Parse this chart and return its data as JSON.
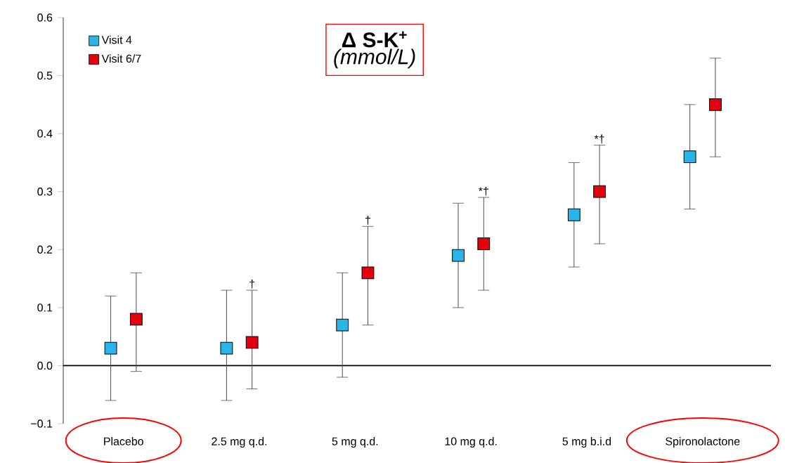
{
  "chart_data": {
    "type": "scatter",
    "title": "Δ S-K$^{+}$",
    "subtitle": "(mmol/L)",
    "categories": [
      "Placebo",
      "2.5 mg q.d.",
      "5 mg q.d.",
      "10 mg q.d.",
      "5 mg b.i.d",
      "Spironolactone"
    ],
    "series": [
      {
        "name": "Visit 4",
        "color": "#29b5e8",
        "values": [
          0.03,
          0.03,
          0.07,
          0.19,
          0.26,
          0.36
        ],
        "errors": [
          [
            -0.06,
            0.12
          ],
          [
            -0.06,
            0.13
          ],
          [
            -0.02,
            0.16
          ],
          [
            0.1,
            0.28
          ],
          [
            0.17,
            0.35
          ],
          [
            0.27,
            0.45
          ]
        ]
      },
      {
        "name": "Visit 6/7",
        "color": "#e3000f",
        "values": [
          0.08,
          0.04,
          0.16,
          0.21,
          0.3,
          0.45
        ],
        "errors": [
          [
            -0.01,
            0.16
          ],
          [
            -0.04,
            0.13
          ],
          [
            0.07,
            0.24
          ],
          [
            0.13,
            0.29
          ],
          [
            0.21,
            0.38
          ],
          [
            0.36,
            0.53
          ]
        ]
      }
    ],
    "ylim": [
      -0.1,
      0.6
    ],
    "yticks": [
      {
        "value": -0.1,
        "label": "−0.1"
      },
      {
        "value": 0,
        "label": "0.0"
      },
      {
        "value": 0.1,
        "label": "0.1"
      },
      {
        "value": 0.2,
        "label": "0.2"
      },
      {
        "value": 0.3,
        "label": "0.3"
      },
      {
        "value": 0.4,
        "label": "0.4"
      },
      {
        "value": 0.5,
        "label": "0.5"
      },
      {
        "value": 0.6,
        "label": "0.6"
      }
    ],
    "ref_lines": [
      {
        "axis": "y",
        "value": 0
      }
    ],
    "annotations": [
      "†",
      "†",
      "*†",
      "*†"
    ],
    "marker": "square",
    "legend": "top left",
    "grid": false
  }
}
